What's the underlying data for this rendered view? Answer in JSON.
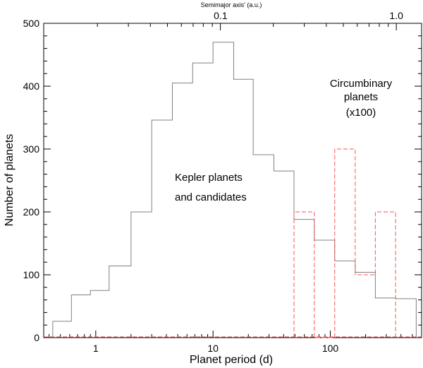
{
  "chart_data": {
    "type": "histogram",
    "xlabel": "Planet period (d)",
    "ylabel": "Number of planets",
    "top_axis_label": "Semimajor axis' (a.u.)",
    "x_scale": "log",
    "xlim": [
      0.36,
      600
    ],
    "ylim": [
      0,
      500
    ],
    "x_ticks": [
      {
        "value": 1,
        "label": "1"
      },
      {
        "value": 10,
        "label": "10"
      },
      {
        "value": 100,
        "label": "100"
      }
    ],
    "y_ticks": [
      {
        "value": 0,
        "label": "0"
      },
      {
        "value": 100,
        "label": "100"
      },
      {
        "value": 200,
        "label": "200"
      },
      {
        "value": 300,
        "label": "300"
      },
      {
        "value": 400,
        "label": "400"
      },
      {
        "value": 500,
        "label": "500"
      }
    ],
    "top_ticks": [
      {
        "period": 11.6,
        "label": "0.1"
      },
      {
        "period": 365.25,
        "label": "1.0"
      }
    ],
    "grid": false,
    "series": [
      {
        "name": "Kepler planets and candidates",
        "style": "solid",
        "color": "#808080",
        "bin_edges": [
          0.43,
          0.62,
          0.9,
          1.3,
          2.0,
          3.0,
          4.5,
          6.7,
          10.0,
          15.0,
          22.0,
          33.0,
          49.0,
          73.0,
          109.0,
          163.0,
          242.0,
          360.0,
          540.0
        ],
        "counts": [
          26,
          68,
          75,
          114,
          200,
          346,
          405,
          437,
          470,
          411,
          291,
          265,
          188,
          155,
          122,
          104,
          63,
          62
        ]
      },
      {
        "name": "Circumbinary planets (x100)",
        "style": "dashed",
        "color": "#ff5050",
        "bin_edges": [
          49.0,
          73.0,
          109.0,
          163.0,
          242.0,
          360.0
        ],
        "counts": [
          200,
          0,
          300,
          100,
          200
        ]
      }
    ],
    "annotations": [
      {
        "id": "kepler-line-1",
        "text": "Kepler planets"
      },
      {
        "id": "kepler-line-2",
        "text": "and candidates"
      },
      {
        "id": "cb-line-1",
        "text": "Circumbinary"
      },
      {
        "id": "cb-line-2",
        "text": "planets"
      },
      {
        "id": "cb-line-3",
        "text": "(x100)"
      }
    ]
  }
}
